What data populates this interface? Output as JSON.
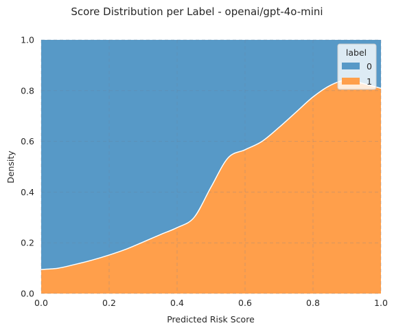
{
  "chart_data": {
    "type": "area",
    "stacked": "fill",
    "title": "Score Distribution per Label - openai/gpt-4o-mini",
    "xlabel": "Predicted Risk Score",
    "ylabel": "Density",
    "xlim": [
      0,
      1
    ],
    "ylim": [
      0,
      1
    ],
    "x_ticks": [
      "0.0",
      "0.2",
      "0.4",
      "0.6",
      "0.8",
      "1.0"
    ],
    "y_ticks": [
      "0.0",
      "0.2",
      "0.4",
      "0.6",
      "0.8",
      "1.0"
    ],
    "grid": true,
    "legend": {
      "title": "label",
      "placement": "top-right"
    },
    "x": [
      0.0,
      0.05,
      0.1,
      0.15,
      0.2,
      0.25,
      0.3,
      0.35,
      0.4,
      0.45,
      0.5,
      0.55,
      0.6,
      0.65,
      0.7,
      0.75,
      0.8,
      0.85,
      0.9,
      0.95,
      1.0
    ],
    "series": [
      {
        "name": "0",
        "color": "#5799c7",
        "values": [
          0.905,
          0.9,
          0.885,
          0.868,
          0.848,
          0.825,
          0.797,
          0.768,
          0.74,
          0.7,
          0.58,
          0.465,
          0.433,
          0.4,
          0.345,
          0.285,
          0.225,
          0.18,
          0.158,
          0.173,
          0.191
        ]
      },
      {
        "name": "1",
        "color": "#ff9f4b",
        "values": [
          0.095,
          0.1,
          0.115,
          0.132,
          0.152,
          0.175,
          0.203,
          0.232,
          0.26,
          0.3,
          0.42,
          0.535,
          0.567,
          0.6,
          0.655,
          0.715,
          0.775,
          0.82,
          0.842,
          0.827,
          0.809
        ]
      }
    ]
  }
}
